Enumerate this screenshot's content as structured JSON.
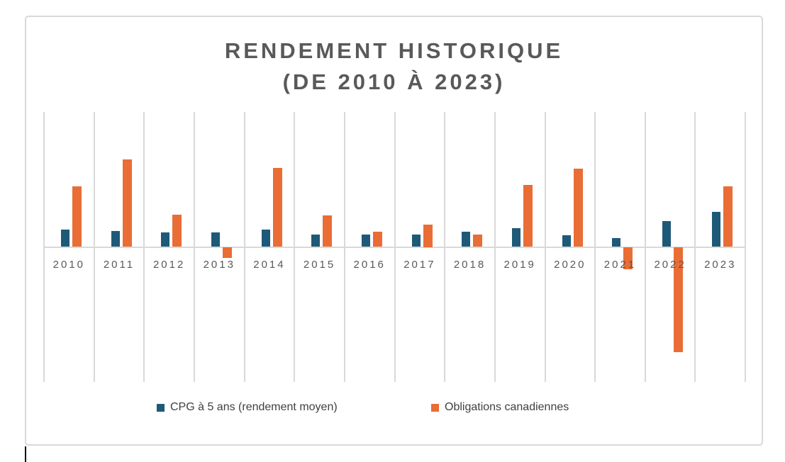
{
  "chart_data": {
    "type": "bar",
    "title": "RENDEMENT HISTORIQUE",
    "subtitle": "(DE 2010 À 2023)",
    "categories": [
      "2010",
      "2011",
      "2012",
      "2013",
      "2014",
      "2015",
      "2016",
      "2017",
      "2018",
      "2019",
      "2020",
      "2021",
      "2022",
      "2023"
    ],
    "series": [
      {
        "name": "CPG à 5 ans (rendement moyen)",
        "key": "cpg-5-ans",
        "color": "#1E5A78",
        "values": [
          1.9,
          1.8,
          1.6,
          1.6,
          1.9,
          1.4,
          1.4,
          1.4,
          1.7,
          2.1,
          1.3,
          1.0,
          2.9,
          3.9
        ]
      },
      {
        "name": "Obligations canadiennes",
        "key": "obligations",
        "color": "#E96D35",
        "values": [
          6.7,
          9.7,
          3.6,
          -1.2,
          8.8,
          3.5,
          1.7,
          2.5,
          1.4,
          6.9,
          8.7,
          -2.5,
          -11.7,
          6.7
        ]
      }
    ],
    "unit": "percent",
    "ylim": [
      -15,
      15
    ],
    "y_axis_labels_visible": false,
    "grid": "vertical-only",
    "legend_position": "bottom"
  },
  "colors": {
    "frame_border": "#D9D9D9",
    "gridline": "#D9D9D9",
    "title_text": "#595959",
    "axis_text": "#595959",
    "legend_text": "#404040",
    "series_cpg": "#1E5A78",
    "series_obligations": "#E96D35"
  }
}
